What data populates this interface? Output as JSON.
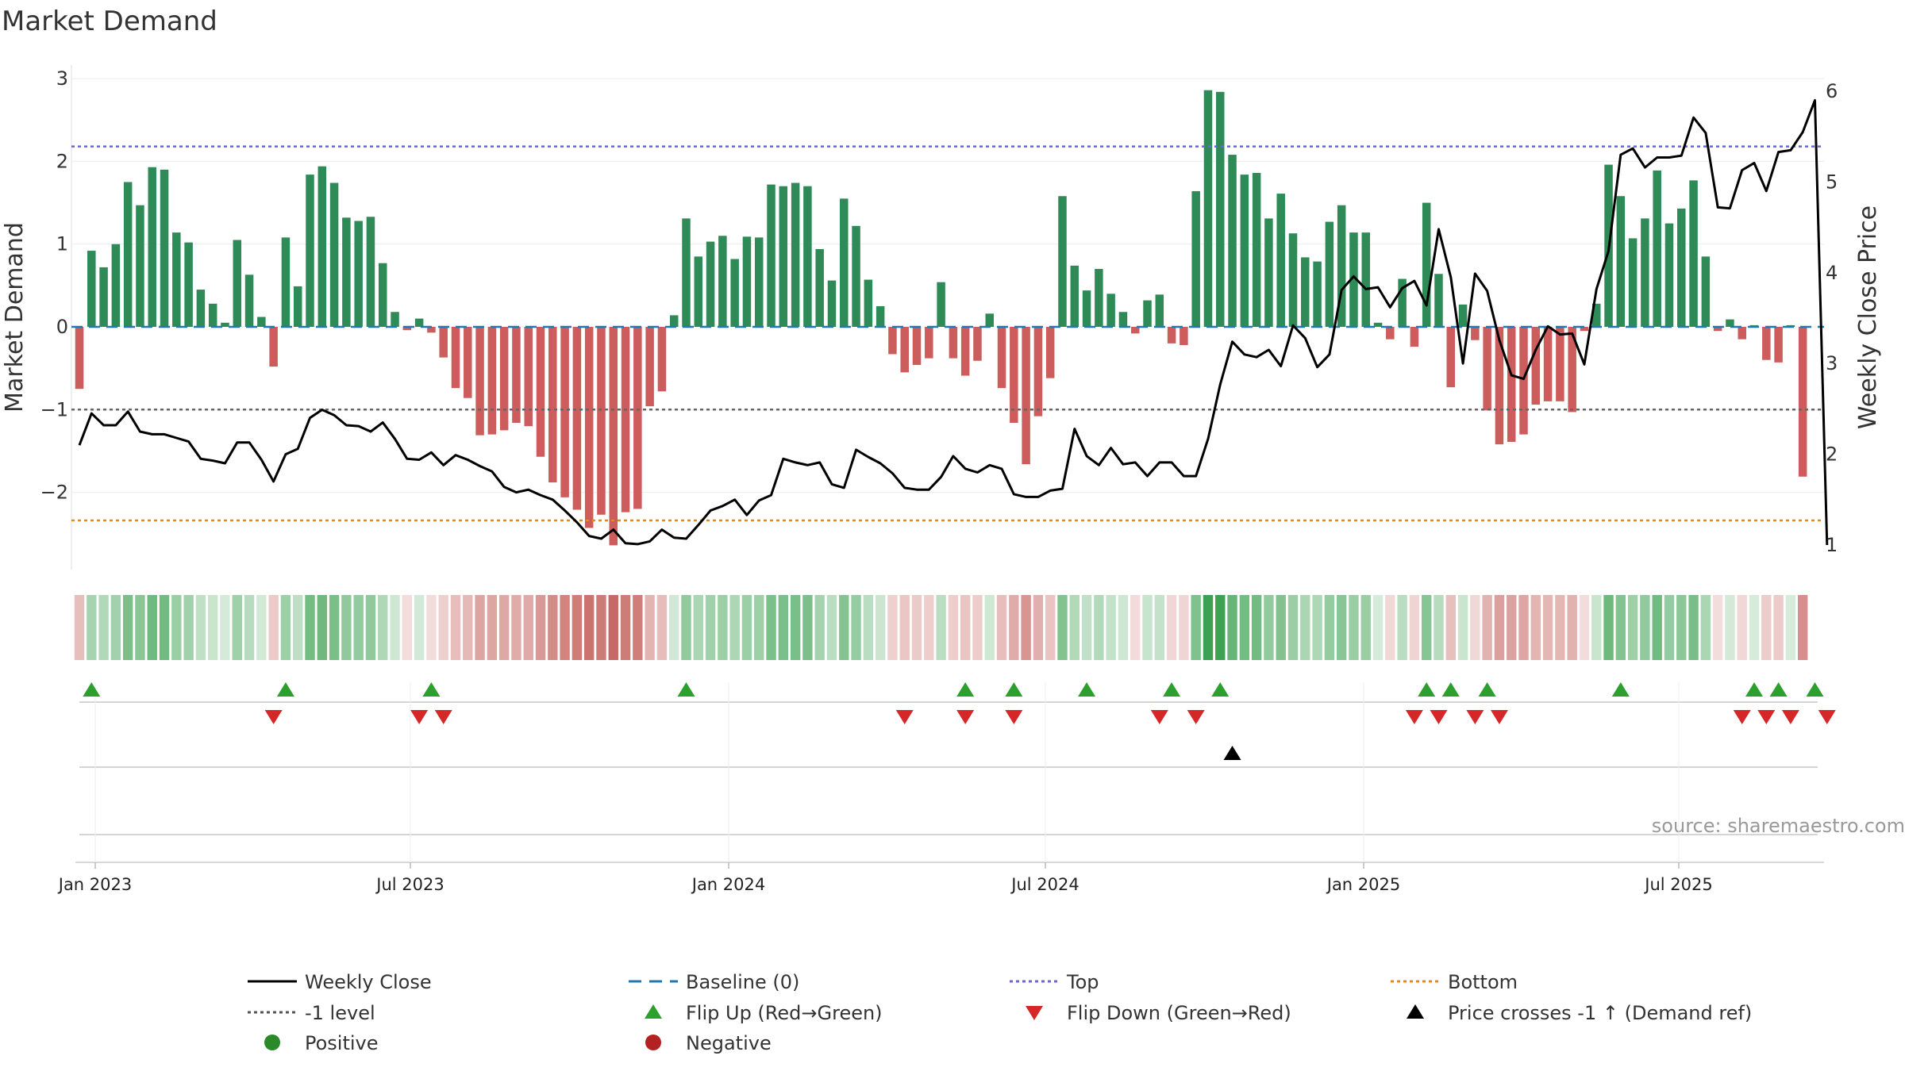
{
  "chart_data": {
    "type": "bar+line",
    "title": "Market Demand",
    "ylabel_left": "Market Demand",
    "ylabel_right": "Weekly Close Price",
    "left_axis": {
      "ylim": [
        -2.95,
        3.15
      ],
      "ticks": [
        3,
        2,
        1,
        0,
        -1,
        -2
      ],
      "tick_labels": [
        "3",
        "2",
        "1",
        "0",
        "−1",
        "−2"
      ]
    },
    "right_axis": {
      "ylim": [
        0.95,
        6.15
      ],
      "ticks": [
        6,
        5,
        4,
        3,
        2,
        1
      ],
      "tick_labels": [
        "6",
        "5",
        "4",
        "3",
        "2",
        "1"
      ]
    },
    "reference_lines": {
      "baseline": 0,
      "top": 2.18,
      "minus_one": -1,
      "bottom": -2.34
    },
    "x_ticks": [
      "Jan 2023",
      "Jul 2023",
      "Jan 2024",
      "Jul 2024",
      "Jan 2025",
      "Jul 2025"
    ],
    "source": "source: sharemaestro.com",
    "demand": [
      -0.75,
      0.92,
      0.72,
      1.0,
      1.75,
      1.47,
      1.93,
      1.9,
      1.14,
      1.02,
      0.45,
      0.28,
      0.05,
      1.05,
      0.63,
      0.12,
      -0.48,
      1.08,
      0.49,
      1.84,
      1.94,
      1.74,
      1.32,
      1.28,
      1.33,
      0.77,
      0.18,
      -0.04,
      0.1,
      -0.07,
      -0.37,
      -0.74,
      -0.86,
      -1.31,
      -1.3,
      -1.25,
      -1.16,
      -1.2,
      -1.57,
      -1.88,
      -2.06,
      -2.21,
      -2.43,
      -2.27,
      -2.64,
      -2.24,
      -2.2,
      -0.96,
      -0.78,
      0.14,
      1.31,
      0.85,
      1.03,
      1.1,
      0.82,
      1.09,
      1.08,
      1.72,
      1.7,
      1.74,
      1.7,
      0.94,
      0.56,
      1.55,
      1.22,
      0.57,
      0.25,
      -0.33,
      -0.55,
      -0.46,
      -0.38,
      0.54,
      -0.38,
      -0.59,
      -0.41,
      0.16,
      -0.74,
      -1.16,
      -1.66,
      -1.08,
      -0.62,
      1.58,
      0.74,
      0.44,
      0.7,
      0.4,
      0.18,
      -0.08,
      0.32,
      0.39,
      -0.2,
      -0.22,
      1.64,
      2.86,
      2.84,
      2.08,
      1.84,
      1.86,
      1.31,
      1.61,
      1.13,
      0.84,
      0.79,
      1.27,
      1.47,
      1.14,
      1.14,
      0.05,
      -0.15,
      0.58,
      -0.24,
      1.5,
      0.64,
      -0.73,
      0.27,
      -0.16,
      -1.01,
      -1.42,
      -1.39,
      -1.3,
      -0.94,
      -0.9,
      -0.9,
      -1.03,
      -0.05,
      0.28,
      1.96,
      1.58,
      1.07,
      1.31,
      1.89,
      1.25,
      1.43,
      1.77,
      0.85,
      -0.05,
      0.09,
      -0.15,
      0.02,
      -0.4,
      -0.43,
      0.02,
      -1.81
    ],
    "close": [
      2.1,
      2.45,
      2.32,
      2.32,
      2.47,
      2.25,
      2.22,
      2.22,
      2.18,
      2.14,
      1.95,
      1.93,
      1.9,
      2.13,
      2.13,
      1.94,
      1.7,
      2.0,
      2.06,
      2.4,
      2.49,
      2.43,
      2.32,
      2.31,
      2.25,
      2.35,
      2.17,
      1.95,
      1.94,
      2.02,
      1.88,
      1.99,
      1.94,
      1.87,
      1.81,
      1.64,
      1.58,
      1.61,
      1.55,
      1.5,
      1.38,
      1.25,
      1.1,
      1.07,
      1.17,
      1.02,
      1.01,
      1.04,
      1.17,
      1.08,
      1.07,
      1.22,
      1.38,
      1.43,
      1.5,
      1.33,
      1.49,
      1.55,
      1.95,
      1.91,
      1.88,
      1.91,
      1.67,
      1.63,
      2.05,
      1.97,
      1.9,
      1.79,
      1.63,
      1.61,
      1.61,
      1.75,
      1.98,
      1.84,
      1.8,
      1.88,
      1.84,
      1.56,
      1.53,
      1.53,
      1.6,
      1.62,
      2.28,
      1.98,
      1.88,
      2.07,
      1.89,
      1.91,
      1.76,
      1.91,
      1.91,
      1.76,
      1.76,
      2.17,
      2.77,
      3.24,
      3.1,
      3.07,
      3.15,
      2.97,
      3.42,
      3.28,
      2.96,
      3.1,
      3.81,
      3.96,
      3.82,
      3.84,
      3.62,
      3.83,
      3.91,
      3.64,
      4.48,
      3.95,
      3.0,
      3.99,
      3.8,
      3.26,
      2.87,
      2.83,
      3.15,
      3.41,
      3.32,
      3.33,
      2.99,
      3.82,
      4.24,
      5.3,
      5.37,
      5.16,
      5.27,
      5.27,
      5.29,
      5.71,
      5.54,
      4.72,
      4.71,
      5.13,
      5.21,
      4.9,
      5.33,
      5.35,
      5.55,
      5.9,
      1.0
    ],
    "flip_up_weeks": [
      1,
      17,
      29,
      50,
      73,
      77,
      83,
      90,
      94,
      111,
      113,
      116,
      127,
      138,
      140,
      143
    ],
    "flip_down_weeks": [
      16,
      28,
      30,
      68,
      73,
      77,
      89,
      92,
      110,
      112,
      115,
      117,
      137,
      139,
      141,
      144
    ],
    "price_cross_weeks": [
      95
    ],
    "legend": [
      {
        "label": "Weekly Close",
        "symbol": "solid-line",
        "color": "#000000"
      },
      {
        "label": "Baseline (0)",
        "symbol": "dash-line",
        "color": "#1f77b4"
      },
      {
        "label": "Top",
        "symbol": "dot-line",
        "color": "#6666cc"
      },
      {
        "label": "Bottom",
        "symbol": "dot-line",
        "color": "#e08a1e"
      },
      {
        "label": "-1 level",
        "symbol": "dot-line",
        "color": "#555555"
      },
      {
        "label": "Flip Up (Red→Green)",
        "symbol": "triangle-up",
        "color": "#2ca02c"
      },
      {
        "label": "Flip Down (Green→Red)",
        "symbol": "triangle-down",
        "color": "#d62728"
      },
      {
        "label": "Price crosses -1 ↑ (Demand ref)",
        "symbol": "triangle-up",
        "color": "#000000"
      },
      {
        "label": "Positive",
        "symbol": "circle",
        "color": "#2a8a2a"
      },
      {
        "label": "Negative",
        "symbol": "circle",
        "color": "#b22222"
      }
    ],
    "colors": {
      "positive_bar": "#2e8b57",
      "negative_bar": "#cd5c5c",
      "flip_up": "#2ca02c",
      "flip_down": "#d62728"
    }
  }
}
